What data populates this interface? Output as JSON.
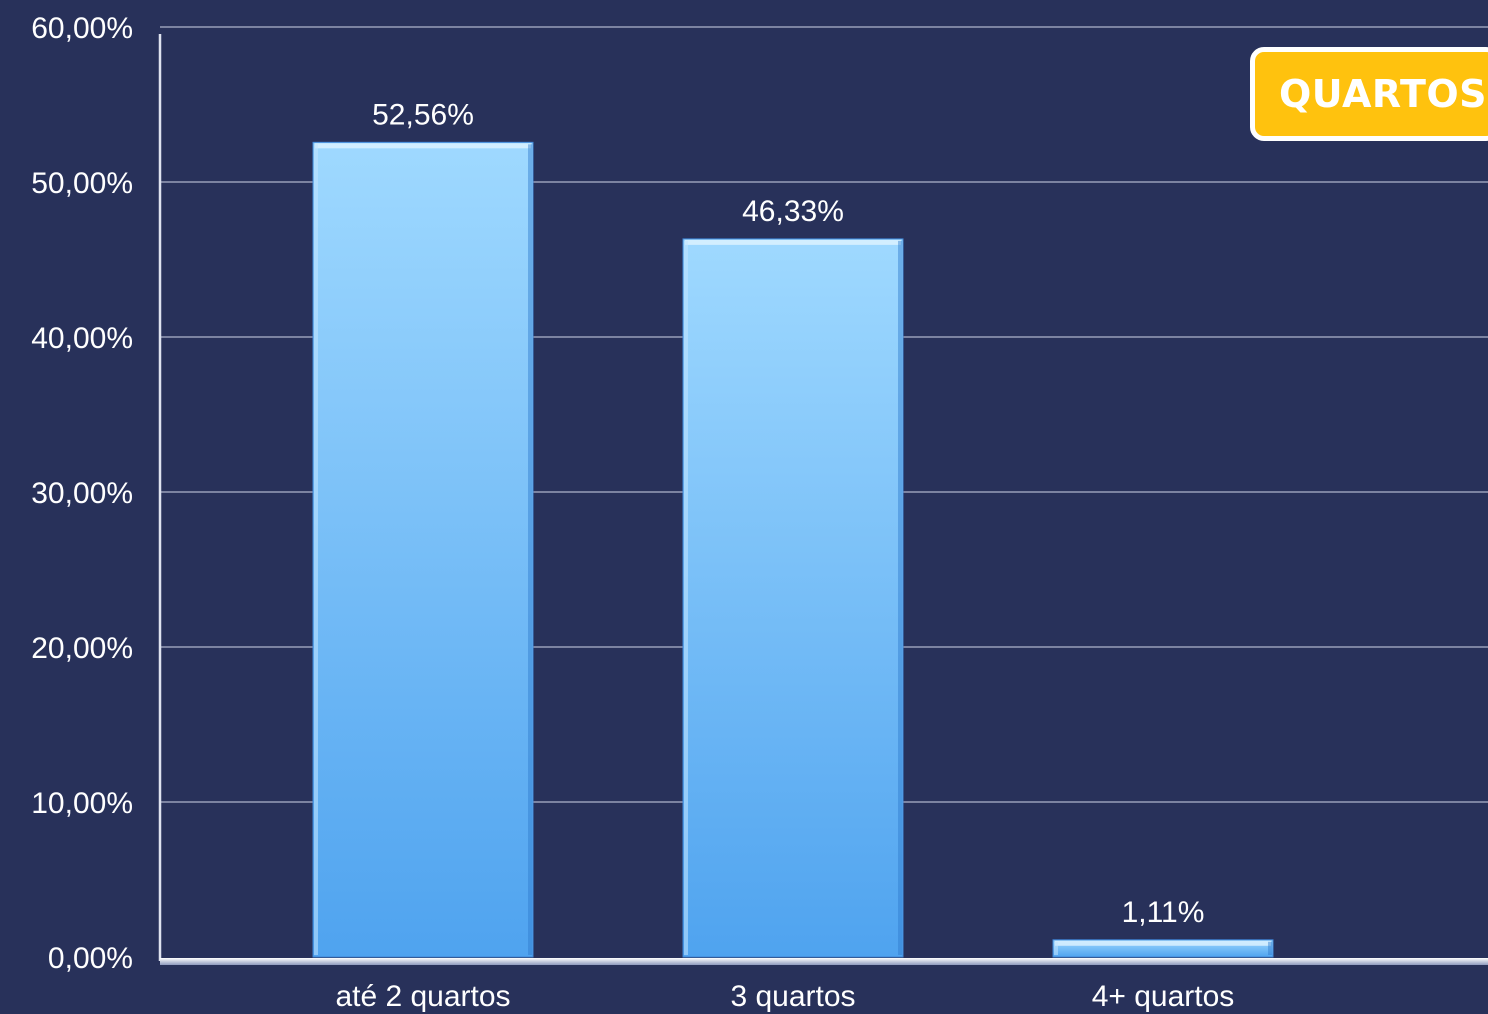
{
  "badge": {
    "label": "QUARTOS"
  },
  "colors": {
    "background": "#28315a",
    "bar_top": "#9fd9ff",
    "bar_bottom": "#4fa3ef",
    "badge": "#ffc20e",
    "text": "#ffffff"
  },
  "chart_data": {
    "type": "bar",
    "categories": [
      "até 2 quartos",
      "3 quartos",
      "4+ quartos"
    ],
    "values": [
      52.56,
      46.33,
      1.11
    ],
    "data_labels": [
      "52,56%",
      "46,33%",
      "1,11%"
    ],
    "y_ticks": [
      "0,00%",
      "10,00%",
      "20,00%",
      "30,00%",
      "40,00%",
      "50,00%",
      "60,00%"
    ],
    "ylim": [
      0,
      60
    ],
    "grid": true,
    "title": "",
    "xlabel": "",
    "ylabel": ""
  }
}
